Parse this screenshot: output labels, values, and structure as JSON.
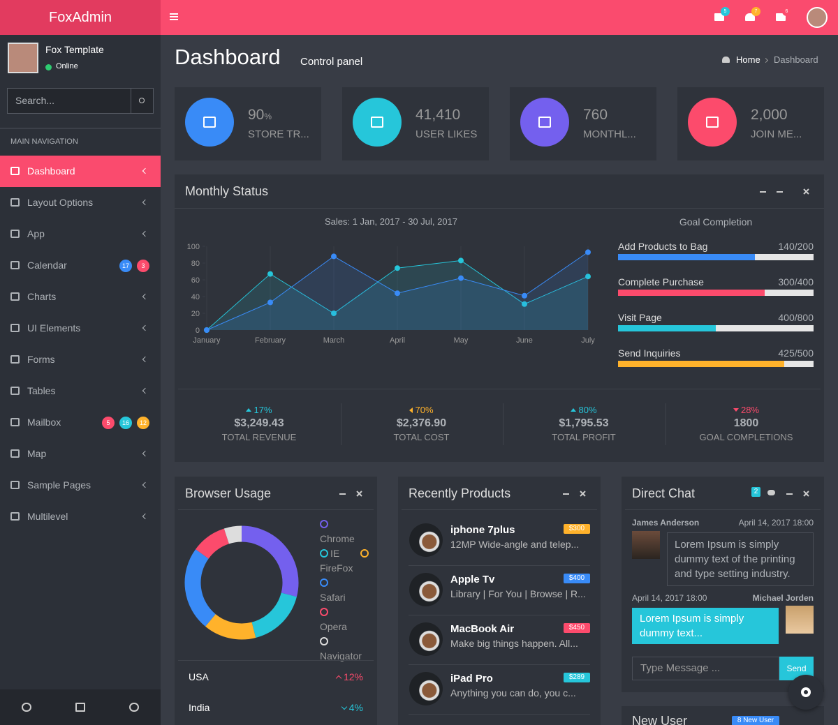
{
  "brand": "FoxAdmin",
  "header": {
    "notifications": [
      {
        "value": 5,
        "color": "#26c6da"
      },
      {
        "value": 7,
        "color": "#ffb22b"
      },
      {
        "value": 6,
        "color": "#fc4b6c"
      }
    ]
  },
  "sidebar": {
    "user": {
      "name": "Fox Template",
      "status": "Online"
    },
    "search_placeholder": "Search...",
    "nav_header": "MAIN NAVIGATION",
    "nav": [
      {
        "label": "Dashboard",
        "active": true
      },
      {
        "label": "Layout Options"
      },
      {
        "label": "App"
      },
      {
        "label": "Calendar",
        "badges": [
          {
            "value": 17,
            "color": "#398bf7"
          },
          {
            "value": 3,
            "color": "#fc4b6c"
          }
        ]
      },
      {
        "label": "Charts"
      },
      {
        "label": "UI Elements"
      },
      {
        "label": "Forms"
      },
      {
        "label": "Tables"
      },
      {
        "label": "Mailbox",
        "badges": [
          {
            "value": 5,
            "color": "#fc4b6c"
          },
          {
            "value": 16,
            "color": "#26c6da"
          },
          {
            "value": 12,
            "color": "#ffb22b"
          }
        ]
      },
      {
        "label": "Map"
      },
      {
        "label": "Sample Pages"
      },
      {
        "label": "Multilevel"
      }
    ]
  },
  "page": {
    "title": "Dashboard",
    "subtitle": "Control panel",
    "breadcrumb": [
      "Home",
      "Dashboard"
    ]
  },
  "info_boxes": [
    {
      "value": 90,
      "unit": "%",
      "label": "STORE TR...",
      "color": "#398bf7"
    },
    {
      "value": "41,410",
      "label": "USER LIKES",
      "color": "#26c6da"
    },
    {
      "value": 760,
      "label": "MONTHL...",
      "color": "#7460ee"
    },
    {
      "value": "2,000",
      "label": "JOIN ME...",
      "color": "#fc4b6c"
    }
  ],
  "monthly_status": {
    "title": "Monthly Status",
    "chart_data": {
      "type": "line",
      "subtitle": "Sales: 1 Jan, 2017 - 30 Jul, 2017",
      "categories": [
        "January",
        "February",
        "March",
        "April",
        "May",
        "June",
        "July"
      ],
      "ylim": [
        0,
        100
      ],
      "yticks": [
        0,
        20,
        40,
        60,
        80,
        100
      ],
      "grid": true,
      "series": [
        {
          "color": "#26c6da",
          "values": [
            0,
            67,
            20,
            74,
            83,
            31,
            64
          ]
        },
        {
          "color": "#398bf7",
          "values": [
            0,
            33,
            88,
            44,
            62,
            41,
            93
          ]
        }
      ]
    },
    "goals": {
      "title": "Goal Completion",
      "items": [
        {
          "label": "Add Products to Bag",
          "value": 140,
          "total": 200,
          "value_label": "140/200",
          "color": "#398bf7"
        },
        {
          "label": "Complete Purchase",
          "value": 300,
          "total": 400,
          "value_label": "300/400",
          "color": "#fc4b6c"
        },
        {
          "label": "Visit Page",
          "value": 400,
          "total": 800,
          "value_label": "400/800",
          "color": "#26c6da"
        },
        {
          "label": "Send Inquiries",
          "value": 425,
          "total": 500,
          "value_label": "425/500",
          "color": "#ffb22b"
        }
      ]
    },
    "stats": [
      {
        "change": "17%",
        "direction": "up",
        "color": "#26c6da",
        "amount": "$3,249.43",
        "label": "TOTAL REVENUE"
      },
      {
        "change": "70%",
        "direction": "left",
        "color": "#ffb22b",
        "amount": "$2,376.90",
        "label": "TOTAL COST"
      },
      {
        "change": "80%",
        "direction": "up",
        "color": "#26c6da",
        "amount": "$1,795.53",
        "label": "TOTAL PROFIT"
      },
      {
        "change": "28%",
        "direction": "down",
        "color": "#fc4b6c",
        "amount": "1800",
        "label": "GOAL COMPLETIONS"
      }
    ]
  },
  "browser_usage": {
    "title": "Browser Usage",
    "chart_data": {
      "type": "donut",
      "categories": [
        "Chrome",
        "IE",
        "FireFox",
        "Safari",
        "Opera",
        "Navigator"
      ],
      "values": [
        29,
        17,
        15,
        24,
        10,
        5
      ],
      "colors": [
        "#7460ee",
        "#26c6da",
        "#ffb22b",
        "#398bf7",
        "#fc4b6c",
        "#dddddd"
      ]
    },
    "countries": [
      {
        "name": "USA",
        "change": "12%",
        "direction": "up",
        "color": "#fc4b6c"
      },
      {
        "name": "India",
        "change": "4%",
        "direction": "down",
        "color": "#26c6da"
      }
    ]
  },
  "products": {
    "title": "Recently Products",
    "items": [
      {
        "name": "iphone 7plus",
        "price": "$300",
        "description": "12MP Wide-angle and telep...",
        "color": "#ffb22b"
      },
      {
        "name": "Apple Tv",
        "price": "$400",
        "description": "Library | For You | Browse | R...",
        "color": "#398bf7"
      },
      {
        "name": "MacBook Air",
        "price": "$450",
        "description": "Make big things happen. All...",
        "color": "#fc4b6c"
      },
      {
        "name": "iPad Pro",
        "price": "$289",
        "description": "Anything you can do, you c...",
        "color": "#26c6da"
      }
    ]
  },
  "chat": {
    "title": "Direct Chat",
    "badge": 2,
    "messages": [
      {
        "name": "James Anderson",
        "time": "April 14, 2017 18:00",
        "text": "Lorem Ipsum is simply dummy text of the printing and type setting industry."
      },
      {
        "name": "Michael Jorden",
        "time": "April 14, 2017 18:00",
        "text": "Lorem Ipsum is simply dummy text..."
      }
    ],
    "input_placeholder": "Type Message ...",
    "send": "Send"
  },
  "new_user": {
    "title": "New User",
    "badge": "8 New User"
  }
}
